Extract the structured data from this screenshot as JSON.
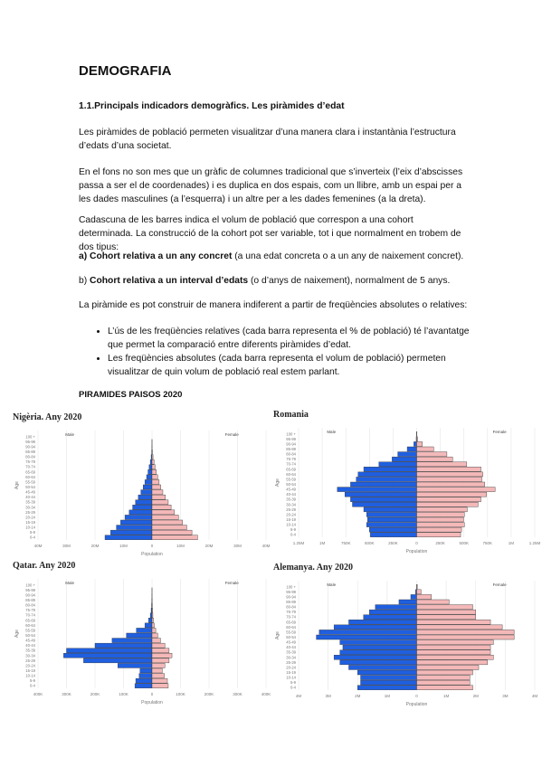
{
  "title": "DEMOGRAFIA",
  "subtitle": "1.1.Principals indicadors demogràfics. Les piràmides d’edat",
  "paragraphs": [
    "Les piràmides de població permeten visualitzar d’una manera clara i instantània l’estructura d’edats d’una societat.",
    "En el fons no son mes que un gràfic de columnes tradicional que s’inverteix (l’eix d’abscisses passa a ser el de coordenades) i es duplica en dos espais, com un llibre, amb un espai per a les dades masculines (a l’esquerra) i un altre per a les dades femenines (a la dreta).",
    "Cadascuna de les barres indica el volum de població que correspon a una cohort determinada. La construcció de la cohort pot ser variable, tot i que normalment en trobem de dos tipus:"
  ],
  "cohorts": [
    {
      "prefix": "a) ",
      "bold": "Cohort relativa a un any concret",
      "text": " (a una edat concreta o a un any de naixement concret)."
    },
    {
      "prefix": "b) ",
      "bold": "Cohort relativa a un interval d’edats",
      "text": " (o d’anys de naixement), normalment de 5 anys."
    }
  ],
  "closing": "La piràmide es pot construir de manera indiferent a partir de freqüències absolutes o relatives:",
  "bullets": [
    "L’ús de les freqüències relatives (cada barra representa el % de població) té l’avantatge que permet la comparació entre diferents piràmides d’edat.",
    "Les freqüències absolutes (cada barra representa el volum de població) permeten visualitzar de quin volum de població real estem parlant."
  ],
  "section": "PIRAMIDES PAISOS 2020",
  "chart_data": [
    {
      "type": "pyramid",
      "title": "Nigèria. Any 2020",
      "xlabel": "Population",
      "ylabel": "Age",
      "categories": [
        "0-4",
        "5-9",
        "10-14",
        "15-19",
        "20-24",
        "25-29",
        "30-34",
        "35-39",
        "40-44",
        "45-49",
        "50-54",
        "55-59",
        "60-64",
        "65-69",
        "70-74",
        "75-79",
        "80-84",
        "85-89",
        "90-94",
        "95-99",
        "100 +"
      ],
      "series": [
        {
          "name": "Male",
          "color": "#1f5fe0",
          "values": [
            16500000,
            14500000,
            12500000,
            11000000,
            9500000,
            8000000,
            6800000,
            5800000,
            4800000,
            3900000,
            3100000,
            2500000,
            1900000,
            1400000,
            1000000,
            600000,
            300000,
            100000,
            30000,
            10000,
            0
          ]
        },
        {
          "name": "Female",
          "color": "#f4b8b8",
          "values": [
            16000000,
            14000000,
            12200000,
            10700000,
            9300000,
            7900000,
            6700000,
            5700000,
            4700000,
            3800000,
            3100000,
            2500000,
            2000000,
            1500000,
            1100000,
            700000,
            350000,
            120000,
            30000,
            10000,
            0
          ]
        }
      ],
      "xlim": [
        -40000000,
        40000000
      ],
      "xticks": [
        {
          "value": -40000000,
          "label": "40M"
        },
        {
          "value": -30000000,
          "label": "30M"
        },
        {
          "value": -20000000,
          "label": "20M"
        },
        {
          "value": -10000000,
          "label": "10M"
        },
        0,
        {
          "value": 10000000,
          "label": "10M"
        },
        {
          "value": 20000000,
          "label": "20M"
        },
        {
          "value": 30000000,
          "label": "30M"
        },
        {
          "value": 40000000,
          "label": "40M"
        }
      ],
      "grid": true
    },
    {
      "type": "pyramid",
      "title": "Romania",
      "xlabel": "Population",
      "ylabel": "Age",
      "categories": [
        "0-4",
        "5-9",
        "10-14",
        "15-19",
        "20-24",
        "25-29",
        "30-34",
        "35-39",
        "40-44",
        "45-49",
        "50-54",
        "55-59",
        "60-64",
        "65-69",
        "70-74",
        "75-79",
        "80-84",
        "85-89",
        "90-94",
        "95-99",
        "100 +"
      ],
      "series": [
        {
          "name": "Male",
          "color": "#1f5fe0",
          "values": [
            490000,
            500000,
            530000,
            520000,
            530000,
            560000,
            680000,
            700000,
            760000,
            840000,
            700000,
            640000,
            620000,
            560000,
            400000,
            260000,
            200000,
            100000,
            30000,
            5000,
            1000
          ]
        },
        {
          "name": "Female",
          "color": "#f4b8b8",
          "values": [
            465000,
            475000,
            505000,
            495000,
            505000,
            535000,
            650000,
            680000,
            740000,
            830000,
            720000,
            690000,
            700000,
            680000,
            530000,
            380000,
            320000,
            180000,
            60000,
            10000,
            2000
          ]
        }
      ],
      "xlim": [
        -1250000,
        1250000
      ],
      "xticks": [
        {
          "value": -1250000,
          "label": "1.25M"
        },
        {
          "value": -1000000,
          "label": "1M"
        },
        {
          "value": -750000,
          "label": "750K"
        },
        {
          "value": -500000,
          "label": "500K"
        },
        {
          "value": -250000,
          "label": "250K"
        },
        0,
        {
          "value": 250000,
          "label": "250K"
        },
        {
          "value": 500000,
          "label": "500K"
        },
        {
          "value": 750000,
          "label": "750K"
        },
        {
          "value": 1000000,
          "label": "1M"
        },
        {
          "value": 1250000,
          "label": "1.25M"
        }
      ],
      "grid": true
    },
    {
      "type": "pyramid",
      "title": "Qatar. Any 2020",
      "xlabel": "Population",
      "ylabel": "Age",
      "categories": [
        "0-4",
        "5-9",
        "10-14",
        "15-19",
        "20-24",
        "25-29",
        "30-34",
        "35-39",
        "40-44",
        "45-49",
        "50-54",
        "55-59",
        "60-64",
        "65-69",
        "70-74",
        "75-79",
        "80-84",
        "85-89",
        "90-94",
        "95-99",
        "100 +"
      ],
      "series": [
        {
          "name": "Male",
          "color": "#1f5fe0",
          "values": [
            60000,
            57000,
            45000,
            42000,
            120000,
            240000,
            310000,
            300000,
            200000,
            140000,
            90000,
            55000,
            25000,
            12000,
            6000,
            3000,
            1500,
            600,
            200,
            50,
            0
          ]
        },
        {
          "name": "Female",
          "color": "#f4b8b8",
          "values": [
            57000,
            54000,
            43000,
            36000,
            45000,
            60000,
            70000,
            60000,
            45000,
            30000,
            20000,
            13000,
            8000,
            5000,
            3000,
            2000,
            1000,
            500,
            200,
            50,
            0
          ]
        }
      ],
      "xlim": [
        -400000,
        400000
      ],
      "xticks": [
        {
          "value": -400000,
          "label": "400K"
        },
        {
          "value": -300000,
          "label": "300K"
        },
        {
          "value": -200000,
          "label": "200K"
        },
        {
          "value": -100000,
          "label": "100K"
        },
        0,
        {
          "value": 100000,
          "label": "100K"
        },
        {
          "value": 200000,
          "label": "200K"
        },
        {
          "value": 300000,
          "label": "300K"
        },
        {
          "value": 400000,
          "label": "400K"
        }
      ],
      "grid": true
    },
    {
      "type": "pyramid",
      "title": "Alemanya. Any 2020",
      "xlabel": "Population",
      "ylabel": "Age",
      "categories": [
        "0-4",
        "5-9",
        "10-14",
        "15-19",
        "20-24",
        "25-29",
        "30-34",
        "35-39",
        "40-44",
        "45-49",
        "50-54",
        "55-59",
        "60-64",
        "65-69",
        "70-74",
        "75-79",
        "80-84",
        "85-89",
        "90-94",
        "95-99",
        "100 +"
      ],
      "series": [
        {
          "name": "Male",
          "color": "#1f5fe0",
          "values": [
            2000000,
            1900000,
            1900000,
            2000000,
            2300000,
            2600000,
            2800000,
            2600000,
            2500000,
            2600000,
            3400000,
            3300000,
            2800000,
            2300000,
            1800000,
            1600000,
            1400000,
            600000,
            200000,
            40000,
            5000
          ]
        },
        {
          "name": "Female",
          "color": "#f4b8b8",
          "values": [
            1900000,
            1800000,
            1800000,
            1900000,
            2100000,
            2400000,
            2600000,
            2500000,
            2500000,
            2600000,
            3300000,
            3300000,
            2900000,
            2500000,
            2000000,
            2000000,
            1900000,
            1100000,
            500000,
            150000,
            20000
          ]
        }
      ],
      "xlim": [
        -4000000,
        4000000
      ],
      "xticks": [
        {
          "value": -4000000,
          "label": "4M"
        },
        {
          "value": -3000000,
          "label": "3M"
        },
        {
          "value": -2000000,
          "label": "2M"
        },
        {
          "value": -1000000,
          "label": "1M"
        },
        0,
        {
          "value": 1000000,
          "label": "1M"
        },
        {
          "value": 2000000,
          "label": "2M"
        },
        {
          "value": 3000000,
          "label": "3M"
        },
        {
          "value": 4000000,
          "label": "4M"
        }
      ],
      "grid": true
    }
  ]
}
